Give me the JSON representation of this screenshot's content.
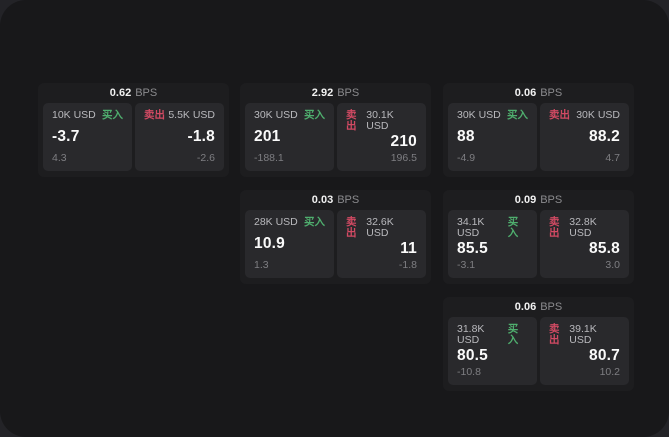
{
  "labels": {
    "bps": "BPS",
    "buy": "买入",
    "sell": "卖出"
  },
  "colors": {
    "buy": "#4fae6e",
    "sell": "#d24a63"
  },
  "cards": [
    {
      "bps": "0.62",
      "buy": {
        "amount": "10K USD",
        "value": "-3.7",
        "delta": "4.3"
      },
      "sell": {
        "amount": "5.5K USD",
        "value": "-1.8",
        "delta": "-2.6"
      }
    },
    {
      "bps": "2.92",
      "buy": {
        "amount": "30K USD",
        "value": "201",
        "delta": "-188.1"
      },
      "sell": {
        "amount": "30.1K USD",
        "value": "210",
        "delta": "196.5"
      }
    },
    {
      "bps": "0.06",
      "buy": {
        "amount": "30K USD",
        "value": "88",
        "delta": "-4.9"
      },
      "sell": {
        "amount": "30K USD",
        "value": "88.2",
        "delta": "4.7"
      }
    },
    {
      "bps": "0.03",
      "buy": {
        "amount": "28K USD",
        "value": "10.9",
        "delta": "1.3"
      },
      "sell": {
        "amount": "32.6K USD",
        "value": "11",
        "delta": "-1.8"
      }
    },
    {
      "bps": "0.09",
      "buy": {
        "amount": "34.1K USD",
        "value": "85.5",
        "delta": "-3.1"
      },
      "sell": {
        "amount": "32.8K USD",
        "value": "85.8",
        "delta": "3.0"
      }
    },
    {
      "bps": "0.06",
      "buy": {
        "amount": "31.8K USD",
        "value": "80.5",
        "delta": "-10.8"
      },
      "sell": {
        "amount": "39.1K USD",
        "value": "80.7",
        "delta": "10.2"
      }
    }
  ]
}
